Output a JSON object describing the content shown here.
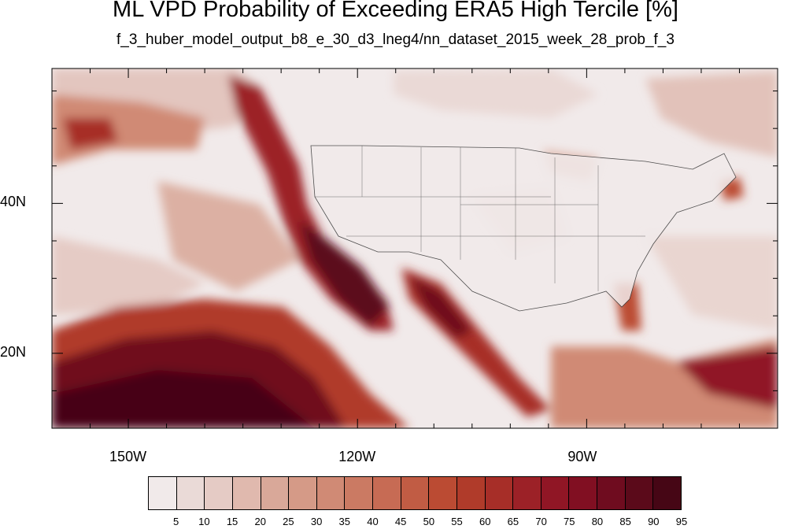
{
  "title": "ML VPD Probability of Exceeding ERA5 High Tercile [%]",
  "subtitle": "f_3_huber_model_output_b8_e_30_d3_lneg4/nn_dataset_2015_week_28_prob_f_3",
  "map": {
    "lon_range": [
      -160,
      -65
    ],
    "lat_range": [
      10,
      58
    ],
    "lon_ticks": [
      {
        "value": -150,
        "label": "150W"
      },
      {
        "value": -120,
        "label": "120W"
      },
      {
        "value": -90,
        "label": "90W"
      }
    ],
    "lat_ticks": [
      {
        "value": 40,
        "label": "40N"
      },
      {
        "value": 20,
        "label": "20N"
      }
    ],
    "background_color": "#f1eaea"
  },
  "colorbar": {
    "labels": [
      "5",
      "10",
      "15",
      "20",
      "25",
      "30",
      "35",
      "40",
      "45",
      "50",
      "55",
      "60",
      "65",
      "70",
      "75",
      "80",
      "85",
      "90",
      "95"
    ],
    "colors": [
      "#f1eaea",
      "#eadad7",
      "#e5cbc5",
      "#e0b9ae",
      "#d9a899",
      "#d59a87",
      "#d08a75",
      "#cb7a63",
      "#c76b54",
      "#c15c44",
      "#bb4b33",
      "#b03b2a",
      "#a72e28",
      "#9c2127",
      "#901625",
      "#810f22",
      "#6f0c1f",
      "#5b0a1a",
      "#460615"
    ]
  }
}
